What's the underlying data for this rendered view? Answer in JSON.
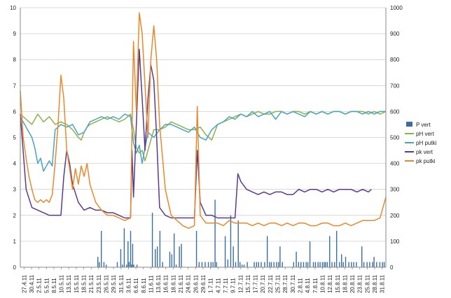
{
  "chart_data": {
    "type": "line",
    "title": "",
    "xlabel": "",
    "ylabel": "",
    "ylim_left": [
      0,
      10
    ],
    "ylim_right": [
      0,
      1000
    ],
    "grid": "horizontal",
    "legend_position": "right",
    "yticks_left": [
      "0",
      "1",
      "2",
      "3",
      "4",
      "5",
      "6",
      "7",
      "8",
      "9",
      "10"
    ],
    "yticks_right": [
      "0",
      "100",
      "200",
      "300",
      "400",
      "500",
      "600",
      "700",
      "800",
      "900",
      "1000"
    ],
    "x_tick_labels": [
      "27.4.11",
      "30.4.11",
      "2.5.11",
      "5.5.11",
      "8.5.11",
      "10.5.11",
      "13.5.11",
      "15.5.11",
      "18.5.11",
      "21.5.11",
      "23.5.11",
      "26.5.11",
      "29.5.11",
      "31.5.11",
      "3.6.11",
      "6.6.11",
      "8.6.11",
      "11.6.11",
      "13.6.11",
      "16.6.11",
      "18.6.11",
      "21.6.11",
      "24.6.11",
      "26.6.11",
      "29.6.11",
      "1.7.11",
      "4.7.11",
      "7.7.11",
      "9.7.11",
      "12.7.11",
      "15.7.11",
      "17.7.11",
      "20.7.11",
      "22.7.11",
      "25.7.11",
      "28.7.11",
      "30.7.11",
      "2.8.11",
      "4.8.11",
      "7.8.11",
      "10.8.11",
      "12.8.11",
      "15.8.11",
      "18.8.11",
      "20.8.11",
      "23.8.11",
      "25.8.11",
      "28.8.11",
      "31.8.11"
    ],
    "colors": {
      "p_vert": "#3b6e9e",
      "ph_vert": "#8db24a",
      "ph_putki": "#48a5c2",
      "pk_vert": "#5b3a8c",
      "pk_putki": "#e8892b"
    },
    "series": [
      {
        "name": "P vert",
        "axis": "right",
        "render": "bar",
        "x": [
          26.7,
          27.2,
          27.9,
          28.8,
          29.6,
          33.4,
          34.6,
          35.2,
          35.8,
          36.6,
          37.1,
          37.5,
          38.0,
          38.3,
          38.7,
          39.1,
          40.2,
          45.5,
          46.5,
          47.2,
          48.1,
          49.0,
          51.5,
          52.2,
          53.0,
          53.7,
          54.8,
          55.5,
          60.7,
          61.6,
          62.6,
          63.7,
          64.8,
          65.7,
          66.4,
          67.1,
          67.6,
          70.6,
          71.5,
          72.5,
          73.4,
          74.2,
          75.1,
          75.7,
          76.4,
          77.1,
          78.2,
          80.6,
          81.4,
          82.1,
          83.0,
          84.2,
          85.1,
          85.9,
          86.5,
          87.4,
          88.3,
          89.0,
          89.5,
          90.3,
          94.2,
          95.1,
          95.9,
          96.7,
          97.6,
          98.5,
          99.1,
          99.8,
          101.0,
          101.7,
          102.6,
          103.3,
          104.1,
          104.7,
          105.2,
          105.8,
          106.6,
          107.4,
          108.3,
          109.0,
          110.0,
          110.7,
          111.3,
          112.1,
          113.2,
          114.1,
          114.9,
          115.8,
          117.7,
          118.4,
          119.5,
          120.4,
          121.4,
          121.9,
          122.8,
          123.9,
          124.8,
          125.4
        ],
        "values": [
          40,
          20,
          140,
          20,
          10,
          20,
          70,
          10,
          150,
          10,
          100,
          20,
          140,
          10,
          90,
          10,
          10,
          210,
          70,
          80,
          140,
          20,
          60,
          50,
          130,
          10,
          80,
          90,
          140,
          20,
          20,
          20,
          20,
          20,
          20,
          260,
          20,
          120,
          30,
          200,
          80,
          20,
          180,
          20,
          10,
          10,
          20,
          20,
          20,
          20,
          20,
          20,
          120,
          20,
          20,
          20,
          20,
          20,
          80,
          20,
          20,
          60,
          20,
          20,
          20,
          20,
          20,
          100,
          20,
          20,
          20,
          20,
          20,
          20,
          20,
          20,
          120,
          20,
          20,
          140,
          20,
          50,
          20,
          40,
          20,
          20,
          20,
          20,
          80,
          20,
          20,
          20,
          20,
          40,
          20,
          20,
          20,
          20
        ]
      },
      {
        "name": "pH vert",
        "axis": "left",
        "render": "line",
        "x": [
          0,
          2,
          4,
          6,
          8,
          10,
          12,
          14,
          16,
          18,
          20,
          21,
          22,
          23,
          24,
          26,
          28,
          30,
          32,
          34,
          36,
          38,
          39,
          40,
          41,
          42,
          43,
          44,
          46,
          48,
          50,
          52,
          54,
          56,
          58,
          60,
          62,
          64,
          66,
          68,
          70,
          72,
          74,
          76,
          78,
          80,
          82,
          84,
          86,
          88,
          90,
          92,
          94,
          96,
          98,
          100,
          102,
          104,
          106,
          108,
          110,
          112,
          114,
          116,
          118,
          120,
          122,
          124,
          126
        ],
        "values": [
          5.9,
          5.7,
          5.5,
          5.9,
          5.6,
          5.8,
          5.5,
          5.6,
          5.5,
          5.3,
          5.0,
          4.9,
          5.2,
          5.4,
          5.5,
          5.6,
          5.7,
          5.8,
          5.7,
          5.6,
          5.7,
          5.9,
          5.3,
          4.6,
          4.4,
          4.5,
          4.1,
          4.5,
          5.3,
          5.3,
          5.4,
          5.6,
          5.5,
          5.4,
          5.3,
          5.3,
          5.4,
          5.1,
          4.9,
          5.5,
          5.6,
          5.7,
          5.8,
          5.9,
          5.8,
          5.9,
          6.0,
          5.9,
          5.9,
          6.0,
          6.0,
          5.9,
          6.0,
          6.0,
          5.9,
          6.0,
          5.9,
          6.0,
          5.9,
          6.0,
          6.0,
          5.9,
          6.0,
          6.0,
          6.0,
          5.9,
          6.0,
          5.9,
          6.0
        ]
      },
      {
        "name": "pH putki",
        "axis": "left",
        "render": "line",
        "x": [
          0,
          2,
          4,
          5,
          6,
          7,
          8,
          10,
          11,
          12,
          14,
          16,
          18,
          20,
          22,
          24,
          26,
          28,
          30,
          32,
          34,
          36,
          38,
          39,
          40,
          41,
          42,
          43,
          44,
          46,
          48,
          50,
          52,
          54,
          56,
          58,
          60,
          62,
          64,
          66,
          68,
          70,
          72,
          74,
          76,
          78,
          80,
          82,
          84,
          86,
          88,
          90,
          92,
          94,
          96,
          98,
          100,
          102,
          104,
          106,
          108,
          110,
          112,
          114,
          116,
          118,
          120,
          122,
          124,
          126
        ],
        "values": [
          5.8,
          5.4,
          5.0,
          4.6,
          4.0,
          4.2,
          3.7,
          4.1,
          3.9,
          5.3,
          5.5,
          5.4,
          5.5,
          5.1,
          5.2,
          5.6,
          5.7,
          5.8,
          5.7,
          5.8,
          5.7,
          5.9,
          5.8,
          4.8,
          4.4,
          4.7,
          4.0,
          4.6,
          5.2,
          5.0,
          5.3,
          5.5,
          5.5,
          5.4,
          5.3,
          5.2,
          5.4,
          5.0,
          4.9,
          5.3,
          5.5,
          5.6,
          5.8,
          5.7,
          5.9,
          5.8,
          6.0,
          5.8,
          5.9,
          6.0,
          5.7,
          6.0,
          5.9,
          6.0,
          5.9,
          5.8,
          6.0,
          5.9,
          6.0,
          5.9,
          6.0,
          6.0,
          5.9,
          6.0,
          6.0,
          5.9,
          6.0,
          5.9,
          6.0,
          6.0
        ]
      },
      {
        "name": "pk vert",
        "axis": "left",
        "render": "line",
        "x": [
          0,
          2,
          4,
          6,
          8,
          10,
          12,
          14,
          15,
          16,
          17,
          18,
          20,
          22,
          24,
          26,
          28,
          30,
          32,
          34,
          36,
          38,
          38.5,
          39,
          40,
          41,
          42,
          43,
          44,
          45,
          46,
          47,
          48,
          50,
          52,
          54,
          56,
          58,
          60,
          61,
          62,
          64,
          66,
          68,
          70,
          72,
          74,
          75,
          76,
          78,
          80,
          82,
          84,
          86,
          88,
          90,
          92,
          94,
          96,
          98,
          100,
          102,
          104,
          106,
          108,
          110,
          112,
          114,
          116,
          118,
          120,
          121
        ],
        "values": [
          5.9,
          3.0,
          2.3,
          2.2,
          2.1,
          2.0,
          2.0,
          2.0,
          3.5,
          4.5,
          4.0,
          3.2,
          2.5,
          2.2,
          2.3,
          2.2,
          2.2,
          2.1,
          2.1,
          2.0,
          1.9,
          1.9,
          4.5,
          2.7,
          5.5,
          8.4,
          6.5,
          4.5,
          6.5,
          7.8,
          7.2,
          5.0,
          2.3,
          2.0,
          1.9,
          1.9,
          1.9,
          1.9,
          1.9,
          4.5,
          2.5,
          2.0,
          2.0,
          1.9,
          1.9,
          1.9,
          1.9,
          3.6,
          3.3,
          3.0,
          2.9,
          2.8,
          2.9,
          2.8,
          2.9,
          2.9,
          2.8,
          2.8,
          3.0,
          2.9,
          3.0,
          3.0,
          2.9,
          3.0,
          2.9,
          3.0,
          3.0,
          3.0,
          2.9,
          3.0,
          2.9,
          3.0
        ]
      },
      {
        "name": "pk putki",
        "axis": "left",
        "render": "line",
        "x": [
          0,
          1,
          2,
          3,
          4,
          5,
          6,
          7,
          8,
          9,
          10,
          11,
          12,
          13,
          14,
          15,
          16,
          17,
          18,
          19,
          20,
          21,
          22,
          23,
          24,
          26,
          28,
          30,
          32,
          34,
          36,
          38,
          39,
          40,
          41,
          42,
          43,
          44,
          45,
          46,
          47,
          48,
          50,
          52,
          54,
          56,
          58,
          60,
          61,
          62,
          64,
          66,
          68,
          70,
          72,
          74,
          76,
          78,
          80,
          82,
          84,
          86,
          88,
          90,
          92,
          94,
          96,
          98,
          100,
          102,
          104,
          106,
          108,
          110,
          112,
          114,
          116,
          118,
          120,
          122,
          124,
          126
        ],
        "values": [
          6.8,
          5.0,
          4.2,
          3.5,
          3.0,
          2.6,
          2.5,
          2.6,
          2.5,
          2.6,
          2.5,
          2.8,
          4.0,
          5.5,
          7.4,
          6.5,
          4.5,
          3.8,
          3.0,
          3.8,
          3.2,
          3.9,
          3.5,
          4.0,
          3.2,
          2.5,
          2.2,
          2.0,
          2.0,
          1.9,
          1.8,
          1.9,
          8.7,
          6.0,
          9.8,
          9.0,
          7.0,
          5.0,
          8.0,
          9.3,
          8.0,
          5.5,
          3.0,
          2.0,
          1.8,
          1.6,
          1.5,
          1.6,
          6.2,
          2.0,
          1.7,
          1.7,
          1.7,
          1.6,
          1.8,
          1.7,
          1.7,
          1.7,
          1.6,
          1.7,
          1.6,
          1.7,
          1.7,
          1.6,
          1.7,
          1.6,
          1.7,
          1.7,
          1.6,
          1.6,
          1.7,
          1.7,
          1.6,
          1.6,
          1.7,
          1.6,
          1.7,
          1.8,
          1.8,
          1.8,
          1.9,
          2.7
        ]
      }
    ]
  }
}
